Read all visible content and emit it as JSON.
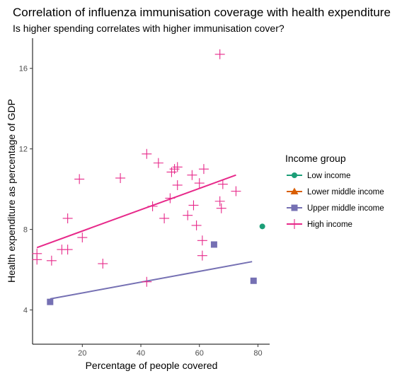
{
  "chart_data": {
    "type": "scatter",
    "title": "Correlation of influenza immunisation coverage with health expenditure",
    "subtitle": "Is higher spending correlates with higher immunisation cover?",
    "xlabel": "Percentage of people covered",
    "ylabel": "Health expenditure as percentage of GDP",
    "xlim": [
      3,
      84
    ],
    "ylim": [
      2.3,
      17.5
    ],
    "xticks": [
      20,
      40,
      60,
      80
    ],
    "yticks": [
      4,
      8,
      12,
      16
    ],
    "grid": false,
    "legend": {
      "title": "Income group",
      "position": "right"
    },
    "series": [
      {
        "name": "Low income",
        "color": "#1b9e77",
        "marker": "circle",
        "points": [
          [
            81.5,
            8.15
          ]
        ]
      },
      {
        "name": "Lower middle income",
        "color": "#d95f02",
        "marker": "triangle",
        "points": []
      },
      {
        "name": "Upper middle income",
        "color": "#7570b3",
        "marker": "square",
        "points": [
          [
            9.0,
            4.4
          ],
          [
            65.0,
            7.25
          ],
          [
            78.5,
            5.45
          ]
        ],
        "trendline": [
          [
            9.0,
            4.55
          ],
          [
            78.0,
            6.4
          ]
        ]
      },
      {
        "name": "High income",
        "color": "#e7298a",
        "marker": "plus",
        "points": [
          [
            4.5,
            6.8
          ],
          [
            4.5,
            6.5
          ],
          [
            9.5,
            6.45
          ],
          [
            13.0,
            7.0
          ],
          [
            15.0,
            7.0
          ],
          [
            15.0,
            8.55
          ],
          [
            19.0,
            10.5
          ],
          [
            20.0,
            7.6
          ],
          [
            27.0,
            6.3
          ],
          [
            33.0,
            10.55
          ],
          [
            42.0,
            11.75
          ],
          [
            42.0,
            5.4
          ],
          [
            44.0,
            9.15
          ],
          [
            46.0,
            11.3
          ],
          [
            48.0,
            8.55
          ],
          [
            50.0,
            9.55
          ],
          [
            50.5,
            10.85
          ],
          [
            51.5,
            11.0
          ],
          [
            52.5,
            11.1
          ],
          [
            52.5,
            10.2
          ],
          [
            56.0,
            8.7
          ],
          [
            57.5,
            10.7
          ],
          [
            58.0,
            9.2
          ],
          [
            59.0,
            8.2
          ],
          [
            60.0,
            10.3
          ],
          [
            61.0,
            7.45
          ],
          [
            61.0,
            6.7
          ],
          [
            61.5,
            11.0
          ],
          [
            67.0,
            16.7
          ],
          [
            67.0,
            9.4
          ],
          [
            67.5,
            9.05
          ],
          [
            68.0,
            10.25
          ],
          [
            72.5,
            9.9
          ]
        ],
        "trendline": [
          [
            4.5,
            7.1
          ],
          [
            72.5,
            10.7
          ]
        ]
      }
    ]
  }
}
